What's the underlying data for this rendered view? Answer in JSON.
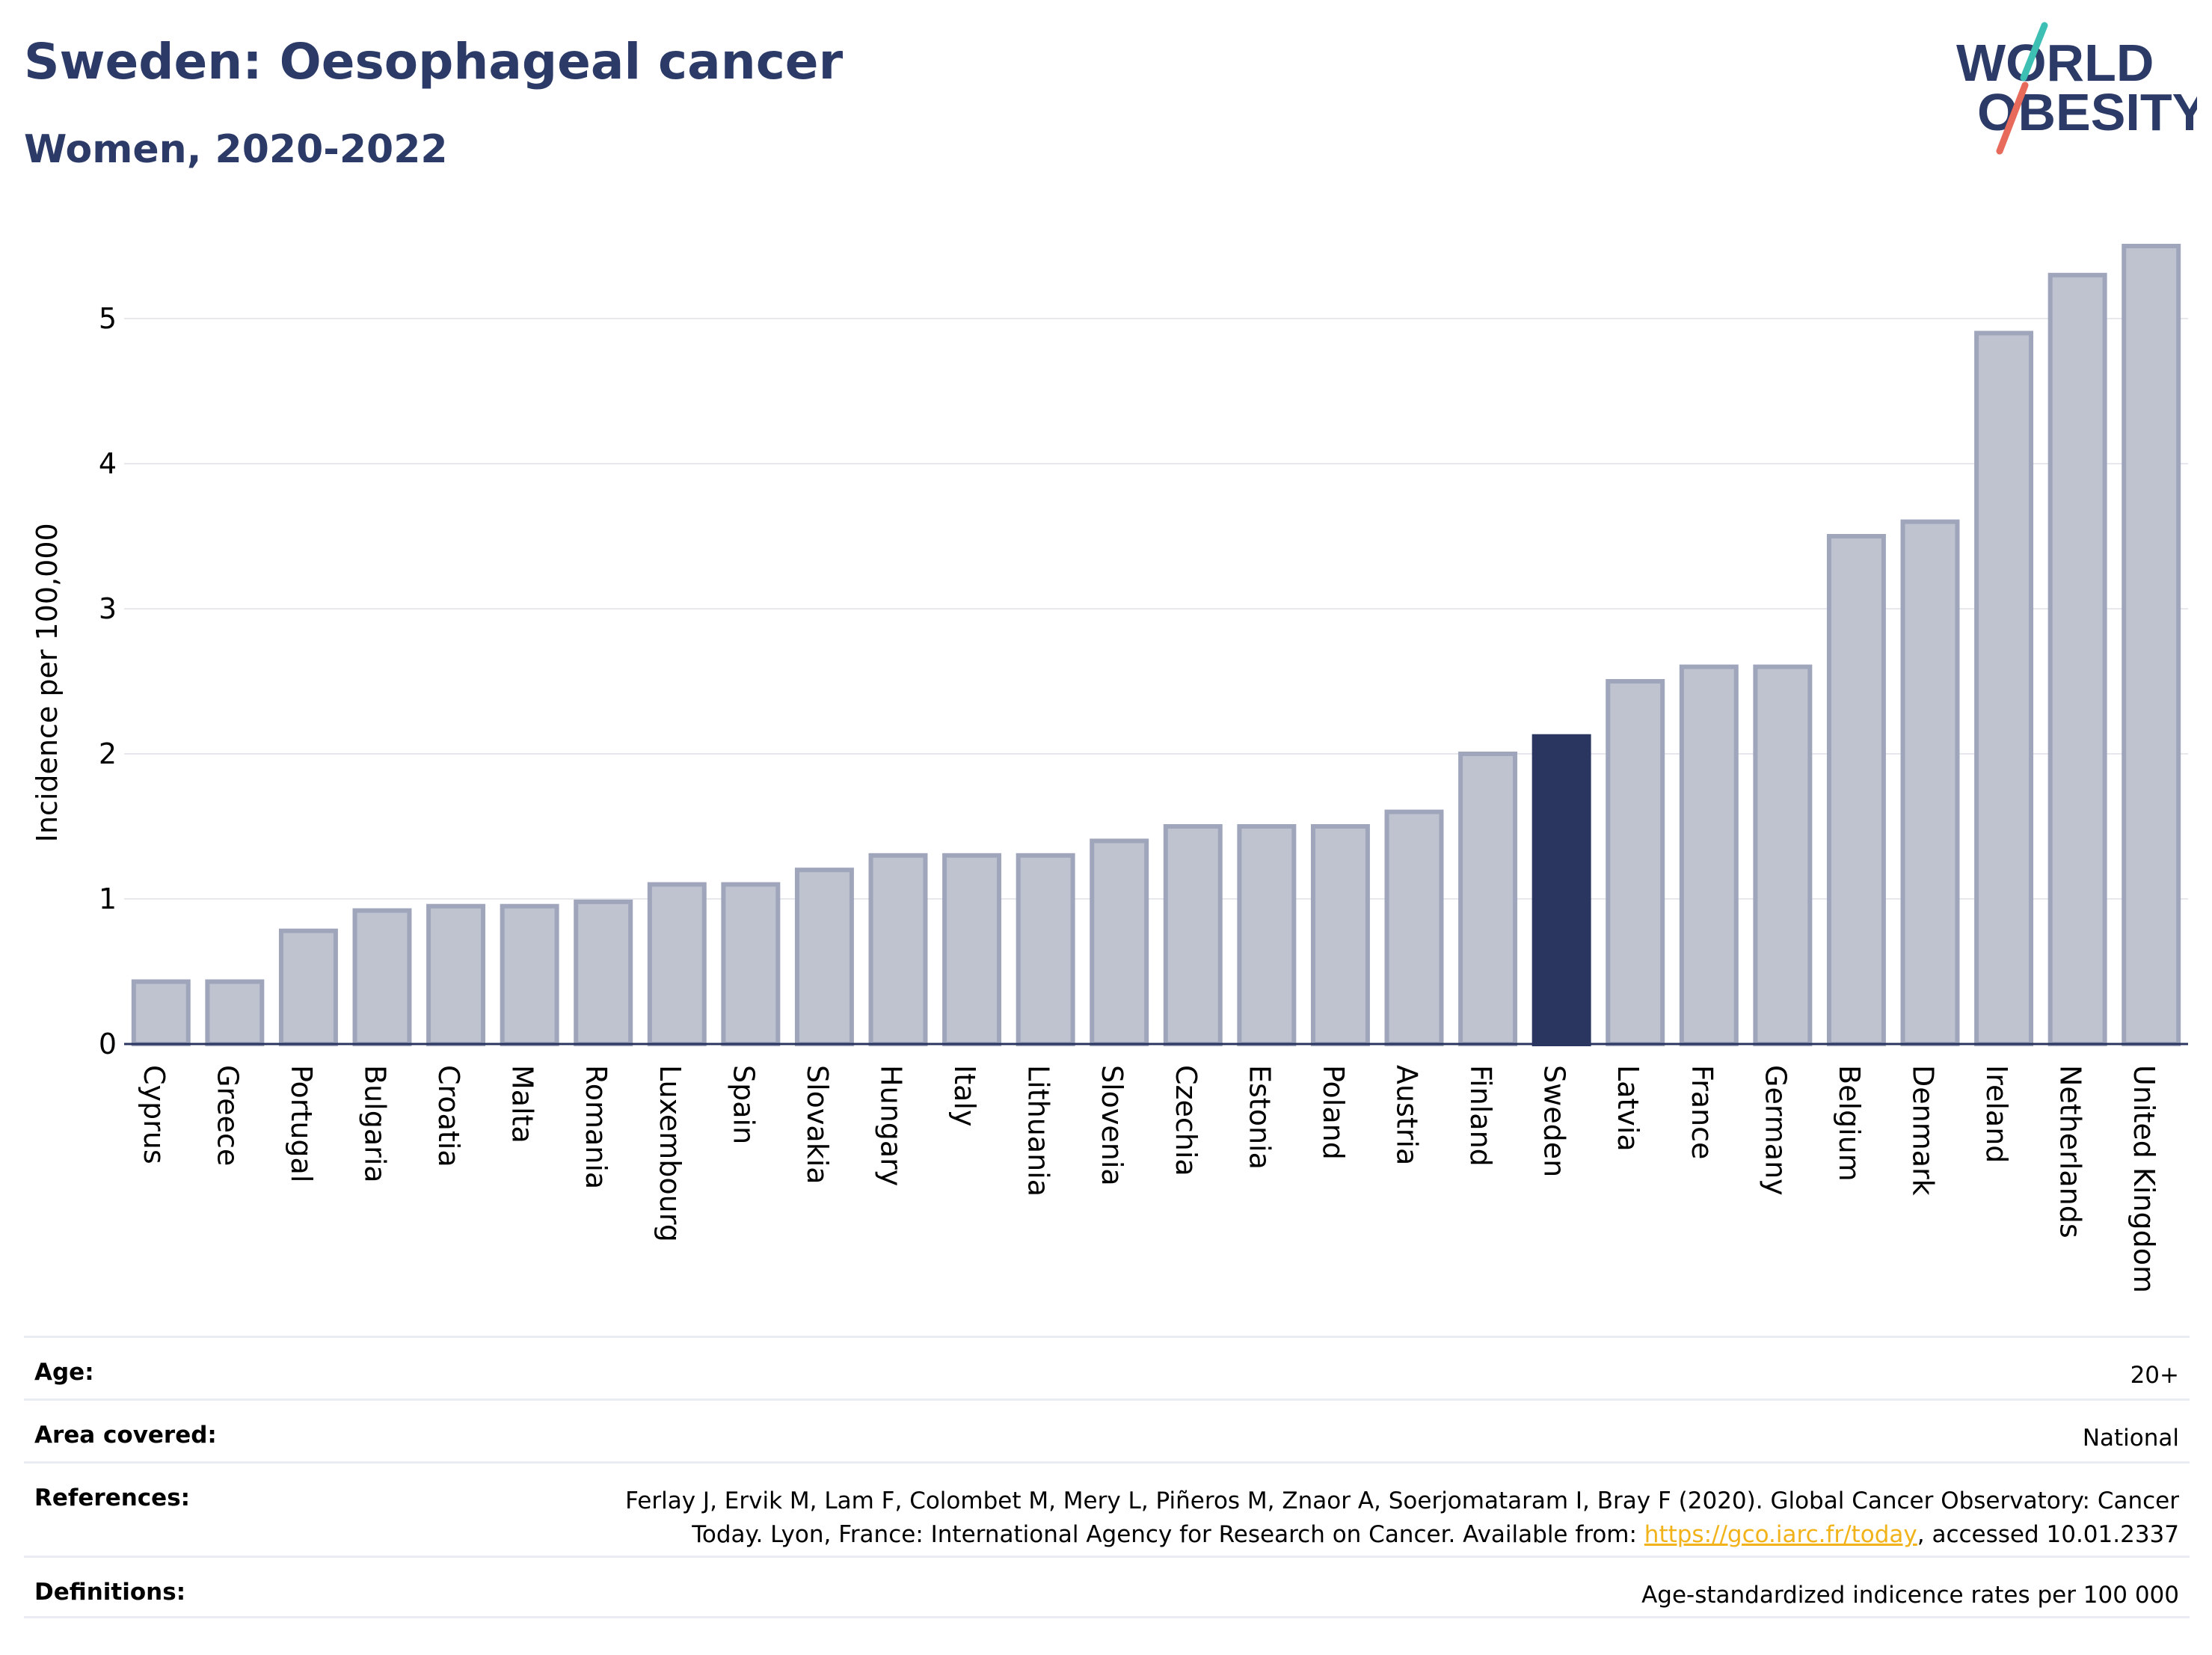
{
  "header": {
    "title": "Sweden: Oesophageal cancer",
    "subtitle": "Women, 2020-2022",
    "logo": {
      "line1": "WORLD",
      "line2": "OBESITY"
    }
  },
  "chart_data": {
    "type": "bar",
    "ylabel": "Incidence per 100,000",
    "ylim": [
      0,
      5.6
    ],
    "yticks": [
      0,
      1,
      2,
      3,
      4,
      5
    ],
    "grid": true,
    "highlight": "Sweden",
    "categories": [
      "Cyprus",
      "Greece",
      "Portugal",
      "Bulgaria",
      "Croatia",
      "Malta",
      "Romania",
      "Luxembourg",
      "Spain",
      "Slovakia",
      "Hungary",
      "Italy",
      "Lithuania",
      "Slovenia",
      "Czechia",
      "Estonia",
      "Poland",
      "Austria",
      "Finland",
      "Sweden",
      "Latvia",
      "France",
      "Germany",
      "Belgium",
      "Denmark",
      "Ireland",
      "Netherlands",
      "United Kingdom"
    ],
    "values": [
      0.43,
      0.43,
      0.78,
      0.92,
      0.95,
      0.95,
      0.98,
      1.1,
      1.1,
      1.2,
      1.3,
      1.3,
      1.3,
      1.4,
      1.5,
      1.5,
      1.5,
      1.6,
      2.0,
      2.12,
      2.5,
      2.6,
      2.6,
      3.5,
      3.6,
      4.9,
      5.3,
      5.5
    ]
  },
  "colors": {
    "bar": "#bfc3d0",
    "bar_border": "#9fa5bb",
    "highlight": "#2b3660",
    "title": "#2b3a67",
    "grid": "#e6e8ee",
    "axis": "#2b3660",
    "logo_teal": "#3dbfb4",
    "logo_red": "#e86a5a"
  },
  "meta": {
    "age_label": "Age:",
    "age_value": "20+",
    "area_label": "Area covered:",
    "area_value": "National",
    "refs_label": "References:",
    "refs_line1": "Ferlay J, Ervik M, Lam F, Colombet M, Mery L, Piñeros M, Znaor A, Soerjomataram I, Bray F (2020). Global Cancer Observatory: Cancer",
    "refs_line2_pre": "Today. Lyon, France: International Agency for Research on Cancer. Available from: ",
    "refs_link": "https://gco.iarc.fr/today",
    "refs_line2_post": ", accessed 10.01.2337",
    "defs_label": "Definitions:",
    "defs_value": "Age-standardized indicence rates per 100 000"
  }
}
